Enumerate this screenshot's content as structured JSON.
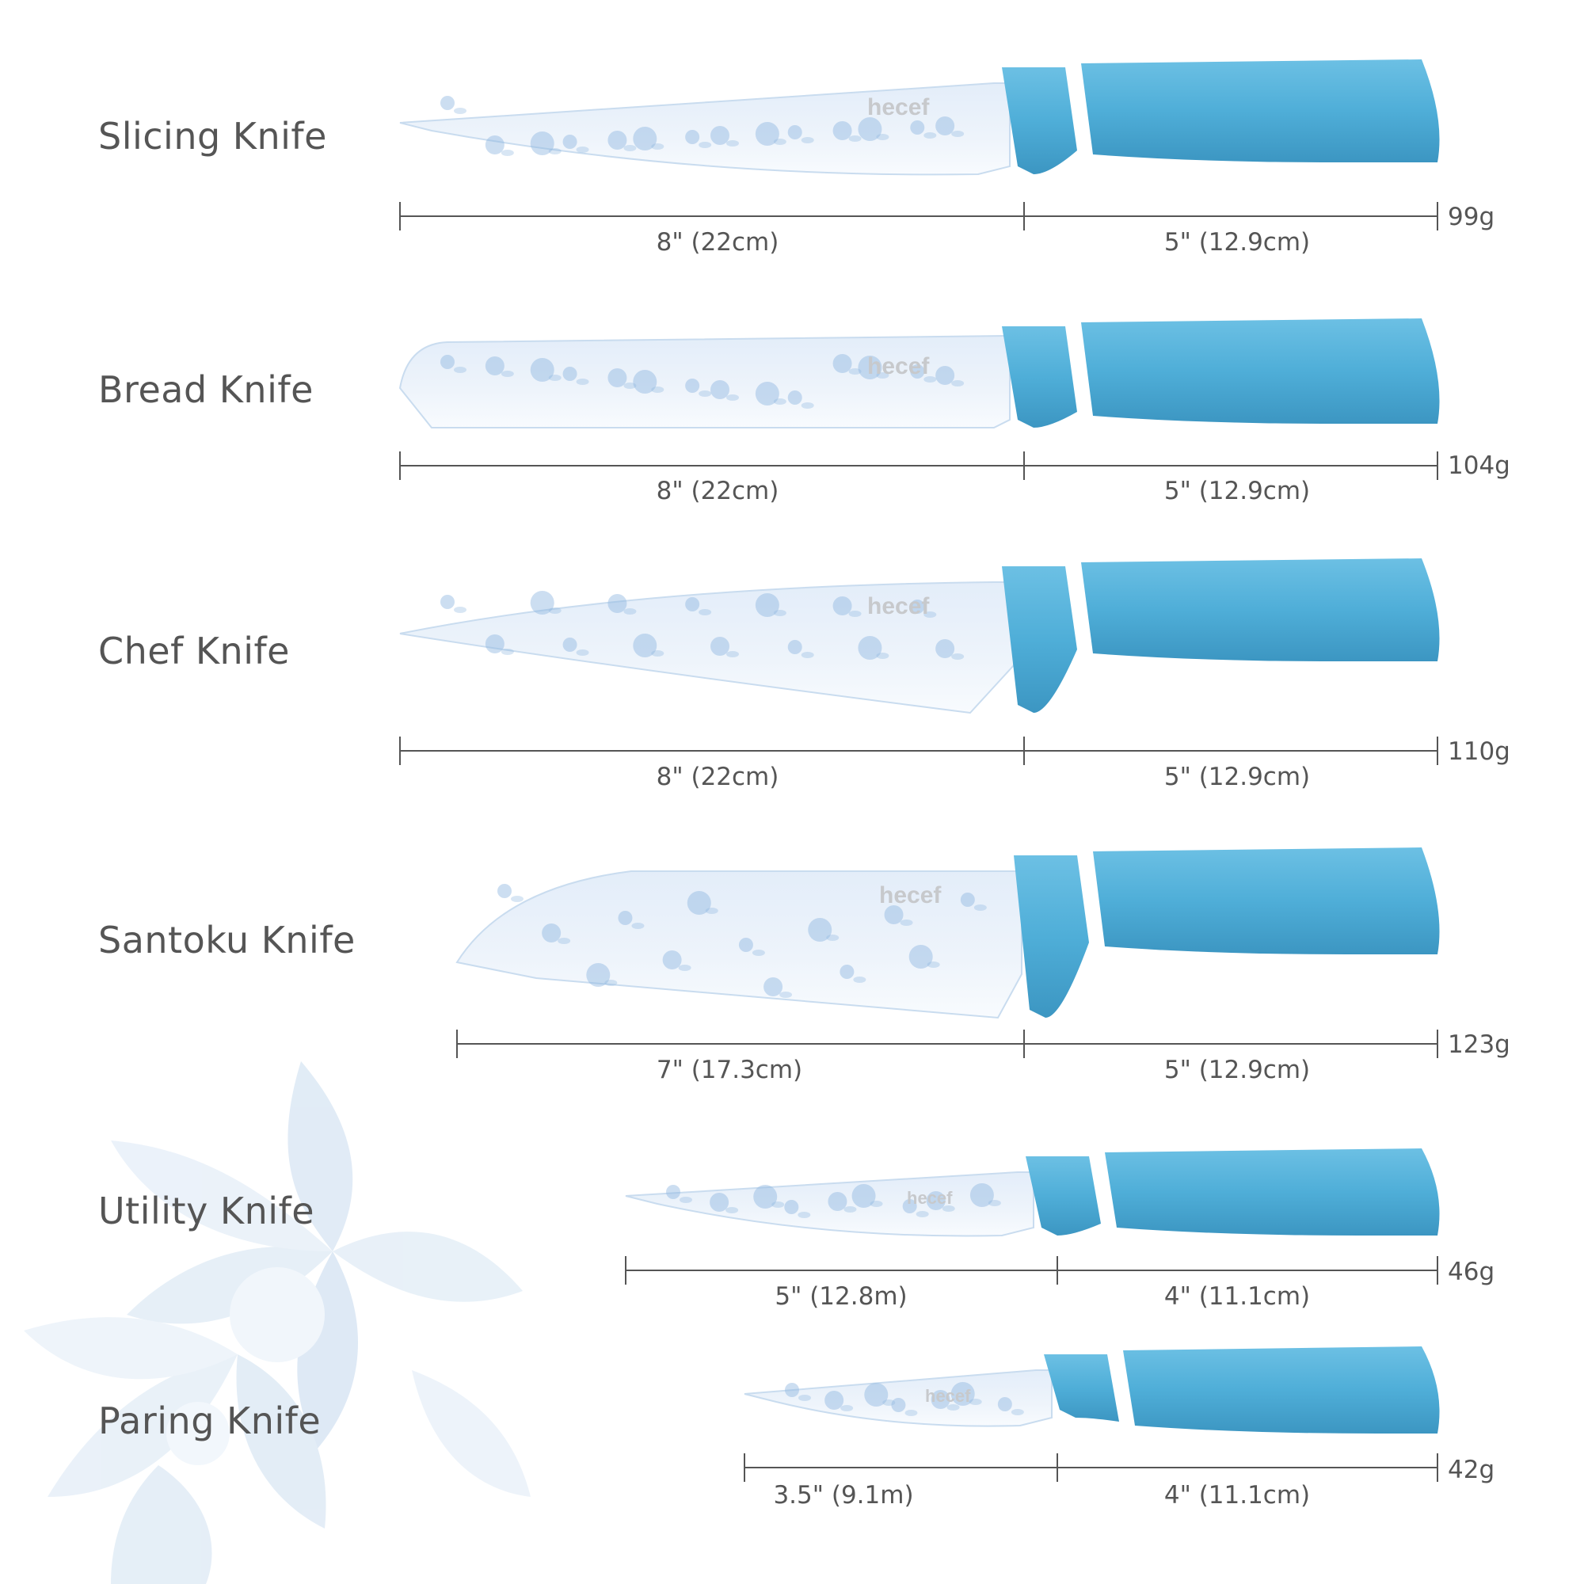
{
  "colors": {
    "handle": "#4faed8",
    "handle_dark": "#3c96c2",
    "blade": "#eaf2fb",
    "flower": "#8fb6e0",
    "rule": "#555555",
    "text": "#555555"
  },
  "brand": "hecef",
  "knives": [
    {
      "name": "Slicing Knife",
      "blade_length": "8\" (22cm)",
      "handle_length": "5\" (12.9cm)",
      "weight": "99g",
      "blade_shape": "slicing"
    },
    {
      "name": "Bread Knife",
      "blade_length": "8\" (22cm)",
      "handle_length": "5\" (12.9cm)",
      "weight": "104g",
      "blade_shape": "bread"
    },
    {
      "name": "Chef Knife",
      "blade_length": "8\" (22cm)",
      "handle_length": "5\" (12.9cm)",
      "weight": "110g",
      "blade_shape": "chef"
    },
    {
      "name": "Santoku Knife",
      "blade_length": "7\" (17.3cm)",
      "handle_length": "5\" (12.9cm)",
      "weight": "123g",
      "blade_shape": "santoku"
    },
    {
      "name": "Utility Knife",
      "blade_length": "5\" (12.8m)",
      "handle_length": "4\" (11.1cm)",
      "weight": "46g",
      "blade_shape": "utility"
    },
    {
      "name": "Paring Knife",
      "blade_length": "3.5\" (9.1m)",
      "handle_length": "4\" (11.1cm)",
      "weight": "42g",
      "blade_shape": "paring"
    }
  ]
}
